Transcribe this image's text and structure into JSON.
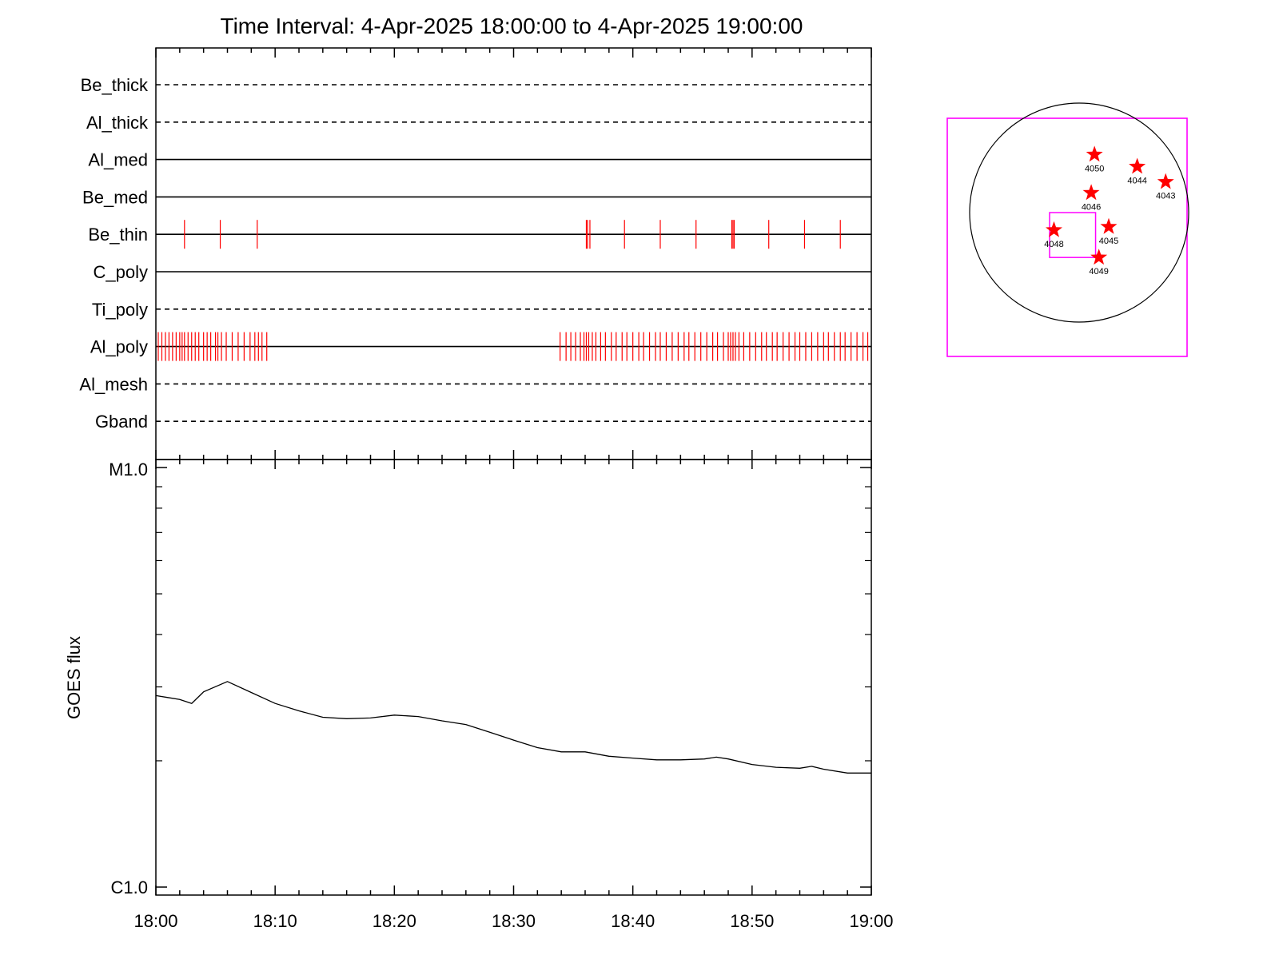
{
  "title": "Time Interval:  4-Apr-2025 18:00:00 to  4-Apr-2025 19:00:00",
  "colors": {
    "axis": "#000000",
    "event_ticks": "#ff0000",
    "frame": "#ff00ff",
    "star": "#ff0000"
  },
  "chart_data": [
    {
      "type": "line",
      "name": "filter-timeline",
      "x_range_minutes": [
        0,
        60
      ],
      "x_tick_labels": [
        "18:00",
        "18:10",
        "18:20",
        "18:30",
        "18:40",
        "18:50",
        "19:00"
      ],
      "rows": [
        {
          "label": "Be_thick",
          "style": "dashed",
          "events": []
        },
        {
          "label": "Al_thick",
          "style": "dashed",
          "events": []
        },
        {
          "label": "Al_med",
          "style": "solid",
          "events": []
        },
        {
          "label": "Be_med",
          "style": "solid",
          "events": []
        },
        {
          "label": "Be_thin",
          "style": "solid",
          "events": [
            2.4,
            5.4,
            8.5,
            36.1,
            36.2,
            36.4,
            39.3,
            42.3,
            45.3,
            48.3,
            48.4,
            48.5,
            51.4,
            54.4,
            57.4
          ]
        },
        {
          "label": "C_poly",
          "style": "solid",
          "events": []
        },
        {
          "label": "Ti_poly",
          "style": "dashed",
          "events": []
        },
        {
          "label": "Al_poly",
          "style": "solid",
          "events": [
            0.2,
            0.5,
            0.8,
            1.1,
            1.4,
            1.7,
            2.0,
            2.2,
            2.4,
            2.7,
            3.0,
            3.3,
            3.6,
            4.0,
            4.3,
            4.6,
            5.0,
            5.2,
            5.5,
            5.9,
            6.4,
            6.9,
            7.4,
            7.9,
            8.3,
            8.6,
            8.9,
            9.3,
            33.9,
            34.4,
            34.8,
            35.2,
            35.6,
            35.9,
            36.1,
            36.3,
            36.6,
            36.9,
            37.3,
            37.7,
            38.2,
            38.6,
            39.1,
            39.5,
            40.0,
            40.5,
            40.9,
            41.4,
            41.9,
            42.3,
            42.8,
            43.3,
            43.8,
            44.3,
            44.7,
            45.2,
            45.7,
            46.2,
            46.7,
            47.1,
            47.6,
            48.0,
            48.2,
            48.4,
            48.6,
            48.9,
            49.3,
            49.8,
            50.3,
            50.8,
            51.2,
            51.7,
            52.1,
            52.6,
            53.1,
            53.6,
            54.0,
            54.5,
            55.0,
            55.5,
            56.0,
            56.4,
            56.9,
            57.4,
            57.8,
            58.3,
            58.8,
            59.3,
            59.7
          ]
        },
        {
          "label": "Al_mesh",
          "style": "dashed",
          "events": []
        },
        {
          "label": "Gband",
          "style": "dashed",
          "events": []
        }
      ]
    },
    {
      "type": "line",
      "name": "goes-flux",
      "ylabel": "GOES flux",
      "y_scale": "log",
      "ylim": [
        1e-06,
        1e-05
      ],
      "y_tick_labels": [
        "C1.0",
        "M1.0"
      ],
      "x_range_minutes": [
        0,
        60
      ],
      "x_tick_labels": [
        "18:00",
        "18:10",
        "18:20",
        "18:30",
        "18:40",
        "18:50",
        "19:00"
      ],
      "x": [
        0,
        1,
        2,
        3,
        4,
        6,
        8,
        10,
        12,
        14,
        16,
        18,
        20,
        22,
        24,
        26,
        28,
        30,
        32,
        34,
        36,
        38,
        40,
        42,
        44,
        46,
        47,
        48,
        50,
        52,
        54,
        55,
        56,
        58,
        60
      ],
      "y": [
        2.86e-06,
        2.83e-06,
        2.8e-06,
        2.74e-06,
        2.92e-06,
        3.09e-06,
        2.91e-06,
        2.74e-06,
        2.63e-06,
        2.54e-06,
        2.52e-06,
        2.53e-06,
        2.57e-06,
        2.55e-06,
        2.49e-06,
        2.44e-06,
        2.34e-06,
        2.24e-06,
        2.15e-06,
        2.1e-06,
        2.1e-06,
        2.05e-06,
        2.03e-06,
        2.01e-06,
        2.01e-06,
        2.02e-06,
        2.04e-06,
        2.02e-06,
        1.96e-06,
        1.93e-06,
        1.92e-06,
        1.94e-06,
        1.91e-06,
        1.87e-06,
        1.87e-06
      ]
    },
    {
      "type": "scatter",
      "name": "solar-disk-map",
      "active_regions": [
        {
          "label": "4050",
          "x": 0.14,
          "y": 0.53
        },
        {
          "label": "4044",
          "x": 0.53,
          "y": 0.42
        },
        {
          "label": "4043",
          "x": 0.79,
          "y": 0.28
        },
        {
          "label": "4046",
          "x": 0.11,
          "y": 0.18
        },
        {
          "label": "4045",
          "x": 0.27,
          "y": -0.13
        },
        {
          "label": "4048",
          "x": -0.23,
          "y": -0.16
        },
        {
          "label": "4049",
          "x": 0.18,
          "y": -0.41
        }
      ],
      "inner_frame": {
        "x1": -0.27,
        "x2": 0.15,
        "y1": -0.41,
        "y2": 0.0
      }
    }
  ]
}
